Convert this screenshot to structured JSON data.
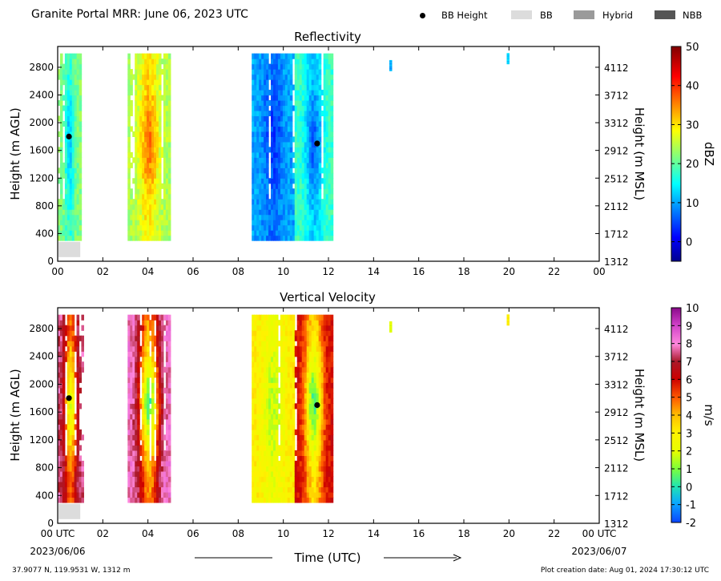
{
  "header": {
    "title": "Granite Portal MRR:  June 06, 2023 UTC",
    "legend": [
      {
        "label": "BB Height",
        "color": "#000000",
        "kind": "dot"
      },
      {
        "label": "BB",
        "color": "#dcdcdc",
        "kind": "box"
      },
      {
        "label": "Hybrid",
        "color": "#9a9a9a",
        "kind": "box"
      },
      {
        "label": "NBB",
        "color": "#555555",
        "kind": "box"
      }
    ]
  },
  "footer": {
    "location": "37.9077 N, 119.9531 W, 1312 m",
    "creation": "Plot creation date: Aug 01, 2024 17:30:12 UTC",
    "xaxis_label": "Time (UTC)",
    "start_date": "2023/06/06",
    "end_date": "2023/06/07"
  },
  "chart_data": [
    {
      "type": "heatmap",
      "title": "Reflectivity",
      "ylabel": "Height (m AGL)",
      "ylabel_right": "Height (m MSL)",
      "colorbar_label": "dBZ",
      "colorbar_range": [
        -5,
        50
      ],
      "colorbar_ticks": [
        "50",
        "40",
        "30",
        "20",
        "10",
        "0"
      ],
      "colorbar_tick_values": [
        50,
        40,
        30,
        20,
        10,
        0
      ],
      "colormap": "jet",
      "xlim": [
        0,
        24
      ],
      "ylim": [
        0,
        3100
      ],
      "x_ticks": [
        "00",
        "02",
        "04",
        "06",
        "08",
        "10",
        "12",
        "14",
        "16",
        "18",
        "20",
        "22",
        "00"
      ],
      "y_ticks": [
        "0",
        "400",
        "800",
        "1200",
        "1600",
        "2000",
        "2400",
        "2800"
      ],
      "y_tick_values": [
        0,
        400,
        800,
        1200,
        1600,
        2000,
        2400,
        2800
      ],
      "y_ticks_right": [
        "1312",
        "1712",
        "2112",
        "2512",
        "2912",
        "3312",
        "3712",
        "4112"
      ],
      "bb_points": [
        {
          "time": 0.5,
          "height": 1800
        },
        {
          "time": 11.5,
          "height": 1700
        }
      ],
      "bb_bars": [
        {
          "start": 0.0,
          "end": 1.0,
          "kind": "BB"
        }
      ],
      "echo_segments": [
        {
          "start": 0.0,
          "end": 1.05,
          "top": 3000,
          "bottom": 300,
          "base_value": 22,
          "core_value": 12
        },
        {
          "start": 3.1,
          "end": 5.0,
          "top": 3000,
          "bottom": 300,
          "base_value": 24,
          "core_value": 36
        },
        {
          "start": 8.6,
          "end": 10.5,
          "top": 3000,
          "bottom": 300,
          "base_value": 10,
          "core_value": 4
        },
        {
          "start": 10.5,
          "end": 12.2,
          "top": 3000,
          "bottom": 300,
          "base_value": 18,
          "core_value": 6
        },
        {
          "start": 14.7,
          "end": 14.8,
          "top": 2900,
          "bottom": 2750,
          "base_value": 10,
          "core_value": 10
        },
        {
          "start": 19.9,
          "end": 20.0,
          "top": 3000,
          "bottom": 2850,
          "base_value": 12,
          "core_value": 12
        }
      ]
    },
    {
      "type": "heatmap",
      "title": "Vertical Velocity",
      "ylabel": "Height (m AGL)",
      "ylabel_right": "Height (m MSL)",
      "colorbar_label": "m/s",
      "colorbar_range": [
        -2,
        10
      ],
      "colorbar_ticks": [
        "10",
        "9",
        "8",
        "7",
        "6",
        "5",
        "4",
        "3",
        "2",
        "1",
        "0",
        "-1",
        "-2"
      ],
      "colorbar_tick_values": [
        10,
        9,
        8,
        7,
        6,
        5,
        4,
        3,
        2,
        1,
        0,
        -1,
        -2
      ],
      "colormap": "velocity",
      "xlim": [
        0,
        24
      ],
      "ylim": [
        0,
        3100
      ],
      "x_ticks": [
        "00 UTC",
        "02",
        "04",
        "06",
        "08",
        "10",
        "12",
        "14",
        "16",
        "18",
        "20",
        "22",
        "00 UTC"
      ],
      "y_ticks": [
        "0",
        "400",
        "800",
        "1200",
        "1600",
        "2000",
        "2400",
        "2800"
      ],
      "y_tick_values": [
        0,
        400,
        800,
        1200,
        1600,
        2000,
        2400,
        2800
      ],
      "y_ticks_right": [
        "1312",
        "1712",
        "2112",
        "2512",
        "2912",
        "3312",
        "3712",
        "4112"
      ],
      "bb_points": [
        {
          "time": 0.5,
          "height": 1800
        },
        {
          "time": 11.5,
          "height": 1700
        }
      ],
      "bb_bars": [
        {
          "start": 0.0,
          "end": 1.0,
          "kind": "BB"
        }
      ],
      "echo_segments": [
        {
          "start": 0.0,
          "end": 1.15,
          "top": 3000,
          "bottom": 300,
          "base_value": 7.5,
          "core_value": 2
        },
        {
          "start": 3.1,
          "end": 5.0,
          "top": 3000,
          "bottom": 300,
          "base_value": 8,
          "core_value": 0.5
        },
        {
          "start": 8.6,
          "end": 10.5,
          "top": 3000,
          "bottom": 300,
          "base_value": 3,
          "core_value": 1.5
        },
        {
          "start": 10.5,
          "end": 12.2,
          "top": 3000,
          "bottom": 300,
          "base_value": 6,
          "core_value": 0.5
        },
        {
          "start": 14.7,
          "end": 14.8,
          "top": 2900,
          "bottom": 2750,
          "base_value": 2,
          "core_value": 2
        },
        {
          "start": 19.9,
          "end": 20.0,
          "top": 3000,
          "bottom": 2850,
          "base_value": 3,
          "core_value": 3
        }
      ]
    }
  ]
}
